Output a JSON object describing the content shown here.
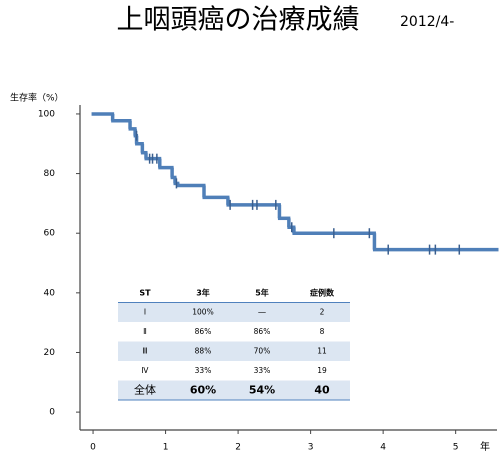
{
  "chart_data": {
    "type": "step",
    "title": "上咽頭癌の治療成績",
    "subtitle": "2012/4-",
    "ylabel": "生存率（%）",
    "xlabel": "年",
    "xlim": [
      -0.18,
      5.57
    ],
    "ylim": [
      -6,
      103
    ],
    "xticks": [
      0,
      1,
      2,
      3,
      4,
      5
    ],
    "yticks": [
      0,
      20,
      40,
      60,
      80,
      100
    ],
    "color": "#4f7fb8",
    "x": [
      0,
      0.27,
      0.51,
      0.58,
      0.6,
      0.68,
      0.73,
      0.92,
      1.09,
      1.13,
      1.17,
      1.53,
      1.86,
      2.57,
      2.7,
      2.77,
      3.88
    ],
    "values": [
      100,
      97.7,
      95,
      92.7,
      90,
      87,
      85,
      82,
      78.7,
      76.7,
      76,
      72,
      69.5,
      65,
      62,
      60,
      54.5
    ],
    "censor": {
      "x": [
        0.6,
        0.78,
        0.82,
        0.88,
        1.15,
        1.89,
        2.2,
        2.26,
        2.52,
        2.74,
        3.32,
        3.81,
        4.07,
        4.64,
        4.72,
        5.05
      ],
      "values": [
        92.7,
        85,
        85,
        85,
        76.7,
        69.5,
        69.5,
        69.5,
        69.5,
        62,
        60,
        60,
        54.5,
        54.5,
        54.5,
        54.5
      ]
    },
    "table": {
      "header": [
        "ST",
        "3年",
        "5年",
        "症例数"
      ],
      "rows": [
        [
          "Ⅰ",
          "100%",
          "―",
          "2"
        ],
        [
          "Ⅱ",
          "86%",
          "86%",
          "8"
        ],
        [
          "Ⅲ",
          "88%",
          "70%",
          "11"
        ],
        [
          "Ⅳ",
          "33%",
          "33%",
          "19"
        ],
        [
          "全体",
          "60%",
          "54%",
          "40"
        ]
      ]
    }
  }
}
